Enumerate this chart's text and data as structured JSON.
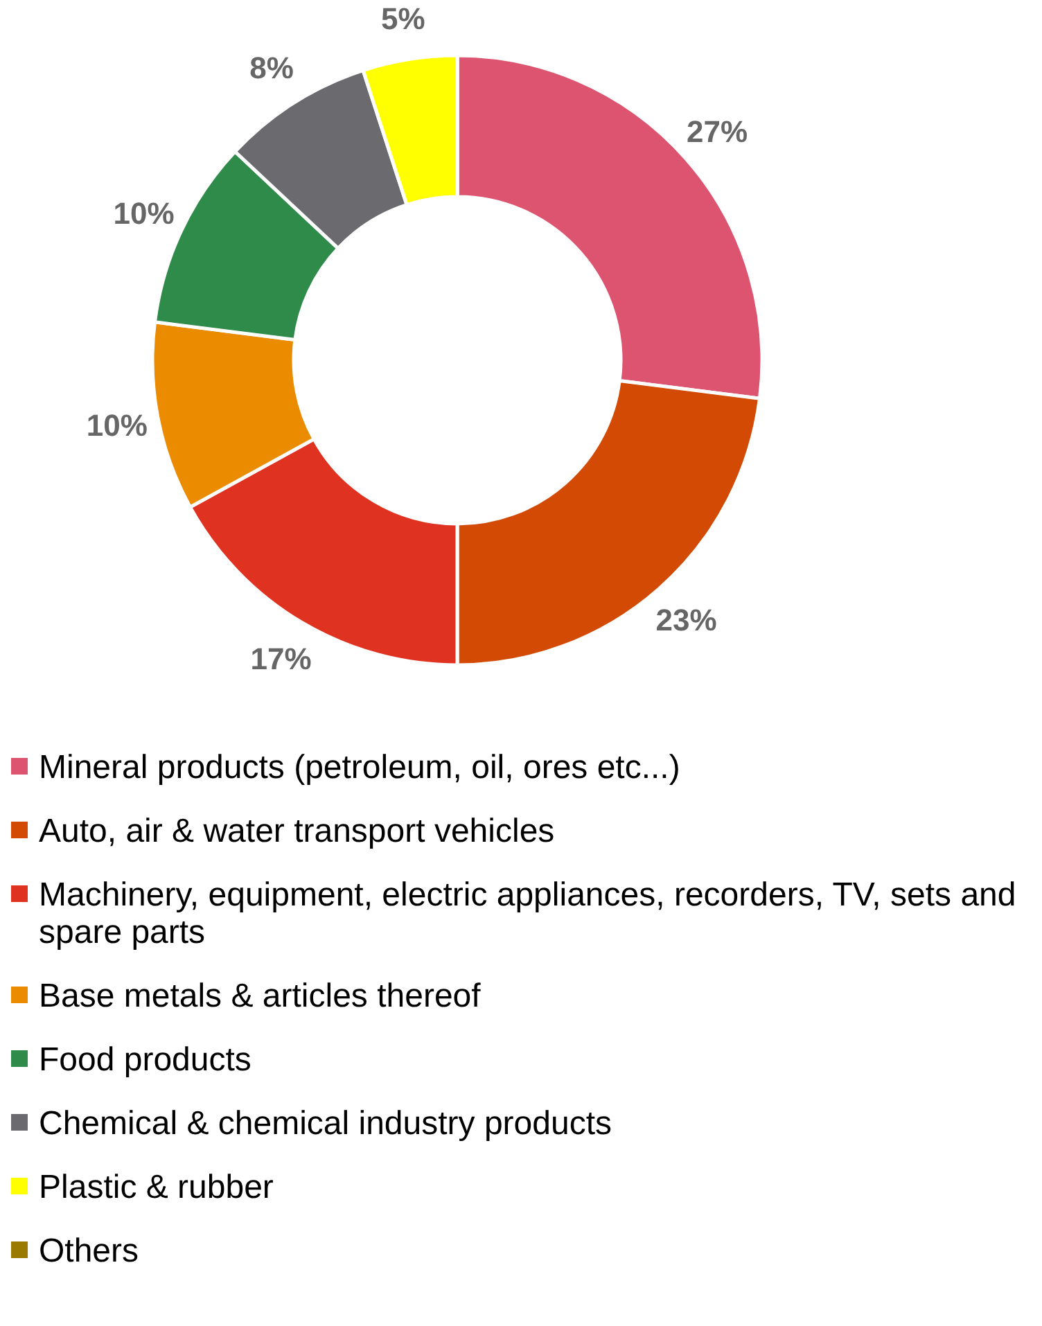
{
  "chart_data": {
    "type": "donut",
    "categories": [
      "Mineral products (petroleum, oil, ores etc...)",
      "Auto, air & water transport vehicles",
      "Machinery, equipment, electric appliances, recorders, TV, sets and spare parts",
      "Base metals & articles thereof",
      "Food products",
      "Chemical & chemical industry products",
      "Plastic & rubber",
      "Others"
    ],
    "values": [
      27,
      23,
      17,
      10,
      10,
      8,
      5,
      0
    ],
    "colors": [
      "#dc5470",
      "#d24a04",
      "#e03220",
      "#eb8c00",
      "#2e8b4a",
      "#6b6b6f",
      "#ffff00",
      "#9a7a00"
    ],
    "value_labels": [
      "27%",
      "23%",
      "17%",
      "10%",
      "10%",
      "8%",
      "5%",
      null
    ],
    "legend": "bottom"
  }
}
